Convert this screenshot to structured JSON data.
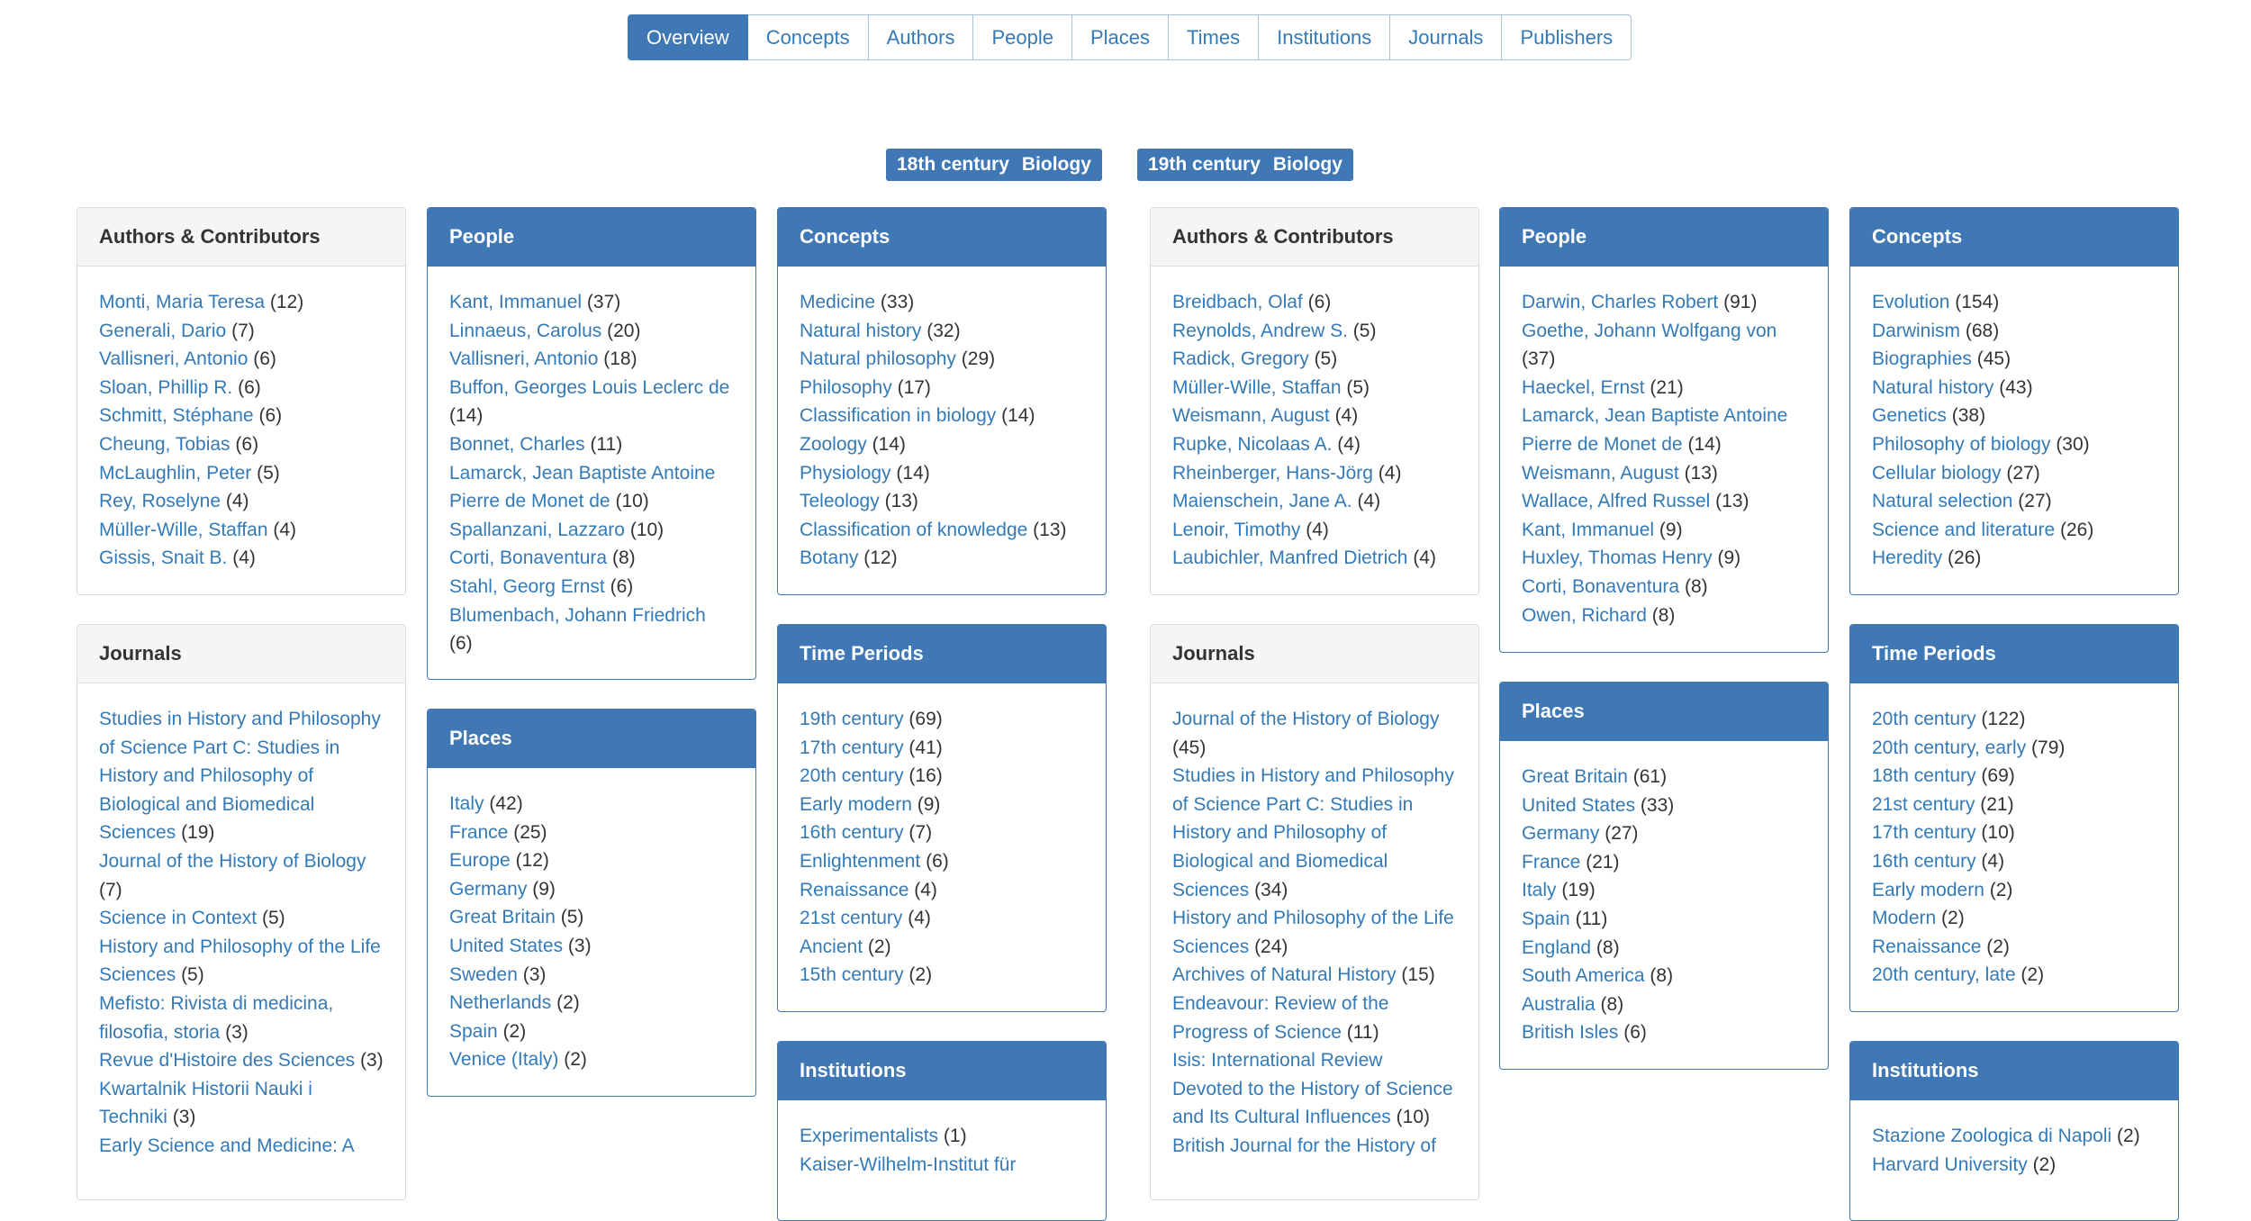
{
  "nav": [
    "Overview",
    "Concepts",
    "Authors",
    "People",
    "Places",
    "Times",
    "Institutions",
    "Journals",
    "Publishers"
  ],
  "chips": [
    {
      "period": "18th century",
      "subject": "Biology"
    },
    {
      "period": "19th century",
      "subject": "Biology"
    }
  ],
  "panels": [
    {
      "title": "Authors & Contributors",
      "items": [
        {
          "name": "Monti, Maria Teresa",
          "count": "(12)"
        },
        {
          "name": "Generali, Dario",
          "count": "(7)"
        },
        {
          "name": "Vallisneri, Antonio",
          "count": "(6)"
        },
        {
          "name": "Sloan, Phillip R.",
          "count": "(6)"
        },
        {
          "name": "Schmitt, Stéphane",
          "count": "(6)"
        },
        {
          "name": "Cheung, Tobias",
          "count": "(6)"
        },
        {
          "name": "McLaughlin, Peter",
          "count": "(5)"
        },
        {
          "name": "Rey, Roselyne",
          "count": "(4)"
        },
        {
          "name": "Müller-Wille, Staffan",
          "count": "(4)"
        },
        {
          "name": "Gissis, Snait B.",
          "count": "(4)"
        }
      ]
    },
    {
      "title": "Journals",
      "items": [
        {
          "name": "Studies in History and Philosophy of Science Part C: Studies in History and Philosophy of Biological and Biomedical Sciences",
          "count": "(19)"
        },
        {
          "name": "Journal of the History of Biology",
          "count": "(7)"
        },
        {
          "name": "Science in Context",
          "count": "(5)"
        },
        {
          "name": "History and Philosophy of the Life Sciences",
          "count": "(5)"
        },
        {
          "name": "Mefisto: Rivista di medicina, filosofia, storia",
          "count": "(3)"
        },
        {
          "name": "Revue d'Histoire des Sciences",
          "count": "(3)"
        },
        {
          "name": "Kwartalnik Historii Nauki i Techniki",
          "count": "(3)"
        },
        {
          "name": "Early Science and Medicine: A",
          "count": ""
        }
      ]
    },
    {
      "title": "People",
      "items": [
        {
          "name": "Kant, Immanuel",
          "count": "(37)"
        },
        {
          "name": "Linnaeus, Carolus",
          "count": "(20)"
        },
        {
          "name": "Vallisneri, Antonio",
          "count": "(18)"
        },
        {
          "name": "Buffon, Georges Louis Leclerc de",
          "count": "(14)"
        },
        {
          "name": "Bonnet, Charles",
          "count": "(11)"
        },
        {
          "name": "Lamarck, Jean Baptiste Antoine Pierre de Monet de",
          "count": "(10)"
        },
        {
          "name": "Spallanzani, Lazzaro",
          "count": "(10)"
        },
        {
          "name": "Corti, Bonaventura",
          "count": "(8)"
        },
        {
          "name": "Stahl, Georg Ernst",
          "count": "(6)"
        },
        {
          "name": "Blumenbach, Johann Friedrich",
          "count": "(6)"
        }
      ]
    },
    {
      "title": "Places",
      "items": [
        {
          "name": "Italy",
          "count": "(42)"
        },
        {
          "name": "France",
          "count": "(25)"
        },
        {
          "name": "Europe",
          "count": "(12)"
        },
        {
          "name": "Germany",
          "count": "(9)"
        },
        {
          "name": "Great Britain",
          "count": "(5)"
        },
        {
          "name": "United States",
          "count": "(3)"
        },
        {
          "name": "Sweden",
          "count": "(3)"
        },
        {
          "name": "Netherlands",
          "count": "(2)"
        },
        {
          "name": "Spain",
          "count": "(2)"
        },
        {
          "name": "Venice (Italy)",
          "count": "(2)"
        }
      ]
    },
    {
      "title": "Concepts",
      "items": [
        {
          "name": "Medicine",
          "count": "(33)"
        },
        {
          "name": "Natural history",
          "count": "(32)"
        },
        {
          "name": "Natural philosophy",
          "count": "(29)"
        },
        {
          "name": "Philosophy",
          "count": "(17)"
        },
        {
          "name": "Classification in biology",
          "count": "(14)"
        },
        {
          "name": "Zoology",
          "count": "(14)"
        },
        {
          "name": "Physiology",
          "count": "(14)"
        },
        {
          "name": "Teleology",
          "count": "(13)"
        },
        {
          "name": "Classification of knowledge",
          "count": "(13)"
        },
        {
          "name": "Botany",
          "count": "(12)"
        }
      ]
    },
    {
      "title": "Time Periods",
      "items": [
        {
          "name": "19th century",
          "count": "(69)"
        },
        {
          "name": "17th century",
          "count": "(41)"
        },
        {
          "name": "20th century",
          "count": "(16)"
        },
        {
          "name": "Early modern",
          "count": "(9)"
        },
        {
          "name": "16th century",
          "count": "(7)"
        },
        {
          "name": "Enlightenment",
          "count": "(6)"
        },
        {
          "name": "Renaissance",
          "count": "(4)"
        },
        {
          "name": "21st century",
          "count": "(4)"
        },
        {
          "name": "Ancient",
          "count": "(2)"
        },
        {
          "name": "15th century",
          "count": "(2)"
        }
      ]
    },
    {
      "title": "Institutions",
      "items": [
        {
          "name": "Experimentalists",
          "count": "(1)"
        },
        {
          "name": "Kaiser-Wilhelm-Institut für",
          "count": ""
        }
      ]
    },
    {
      "title": "Authors & Contributors",
      "items": [
        {
          "name": "Breidbach, Olaf",
          "count": "(6)"
        },
        {
          "name": "Reynolds, Andrew S.",
          "count": "(5)"
        },
        {
          "name": "Radick, Gregory",
          "count": "(5)"
        },
        {
          "name": "Müller-Wille, Staffan",
          "count": "(5)"
        },
        {
          "name": "Weismann, August",
          "count": "(4)"
        },
        {
          "name": "Rupke, Nicolaas A.",
          "count": "(4)"
        },
        {
          "name": "Rheinberger, Hans-Jörg",
          "count": "(4)"
        },
        {
          "name": "Maienschein, Jane A.",
          "count": "(4)"
        },
        {
          "name": "Lenoir, Timothy",
          "count": "(4)"
        },
        {
          "name": "Laubichler, Manfred Dietrich",
          "count": "(4)"
        }
      ]
    },
    {
      "title": "Journals",
      "items": [
        {
          "name": "Journal of the History of Biology",
          "count": "(45)"
        },
        {
          "name": "Studies in History and Philosophy of Science Part C: Studies in History and Philosophy of Biological and Biomedical Sciences",
          "count": "(34)"
        },
        {
          "name": "History and Philosophy of the Life Sciences",
          "count": "(24)"
        },
        {
          "name": "Archives of Natural History",
          "count": "(15)"
        },
        {
          "name": "Endeavour: Review of the Progress of Science",
          "count": "(11)"
        },
        {
          "name": "Isis: International Review Devoted to the History of Science and Its Cultural Influences",
          "count": "(10)"
        },
        {
          "name": "British Journal for the History of",
          "count": ""
        }
      ]
    },
    {
      "title": "People",
      "items": [
        {
          "name": "Darwin, Charles Robert",
          "count": "(91)"
        },
        {
          "name": "Goethe, Johann Wolfgang von",
          "count": "(37)"
        },
        {
          "name": "Haeckel, Ernst",
          "count": "(21)"
        },
        {
          "name": "Lamarck, Jean Baptiste Antoine Pierre de Monet de",
          "count": "(14)"
        },
        {
          "name": "Weismann, August",
          "count": "(13)"
        },
        {
          "name": "Wallace, Alfred Russel",
          "count": "(13)"
        },
        {
          "name": "Kant, Immanuel",
          "count": "(9)"
        },
        {
          "name": "Huxley, Thomas Henry",
          "count": "(9)"
        },
        {
          "name": "Corti, Bonaventura",
          "count": "(8)"
        },
        {
          "name": "Owen, Richard",
          "count": "(8)"
        }
      ]
    },
    {
      "title": "Places",
      "items": [
        {
          "name": "Great Britain",
          "count": "(61)"
        },
        {
          "name": "United States",
          "count": "(33)"
        },
        {
          "name": "Germany",
          "count": "(27)"
        },
        {
          "name": "France",
          "count": "(21)"
        },
        {
          "name": "Italy",
          "count": "(19)"
        },
        {
          "name": "Spain",
          "count": "(11)"
        },
        {
          "name": "England",
          "count": "(8)"
        },
        {
          "name": "South America",
          "count": "(8)"
        },
        {
          "name": "Australia",
          "count": "(8)"
        },
        {
          "name": "British Isles",
          "count": "(6)"
        }
      ]
    },
    {
      "title": "Concepts",
      "items": [
        {
          "name": "Evolution",
          "count": "(154)"
        },
        {
          "name": "Darwinism",
          "count": "(68)"
        },
        {
          "name": "Biographies",
          "count": "(45)"
        },
        {
          "name": "Natural history",
          "count": "(43)"
        },
        {
          "name": "Genetics",
          "count": "(38)"
        },
        {
          "name": "Philosophy of biology",
          "count": "(30)"
        },
        {
          "name": "Cellular biology",
          "count": "(27)"
        },
        {
          "name": "Natural selection",
          "count": "(27)"
        },
        {
          "name": "Science and literature",
          "count": "(26)"
        },
        {
          "name": "Heredity",
          "count": "(26)"
        }
      ]
    },
    {
      "title": "Time Periods",
      "items": [
        {
          "name": "20th century",
          "count": "(122)"
        },
        {
          "name": "20th century, early",
          "count": "(79)"
        },
        {
          "name": "18th century",
          "count": "(69)"
        },
        {
          "name": "21st century",
          "count": "(21)"
        },
        {
          "name": "17th century",
          "count": "(10)"
        },
        {
          "name": "16th century",
          "count": "(4)"
        },
        {
          "name": "Early modern",
          "count": "(2)"
        },
        {
          "name": "Modern",
          "count": "(2)"
        },
        {
          "name": "Renaissance",
          "count": "(2)"
        },
        {
          "name": "20th century, late",
          "count": "(2)"
        }
      ]
    },
    {
      "title": "Institutions",
      "items": [
        {
          "name": "Stazione Zoologica di Napoli",
          "count": "(2)"
        },
        {
          "name": "Harvard University",
          "count": "(2)"
        }
      ]
    }
  ]
}
